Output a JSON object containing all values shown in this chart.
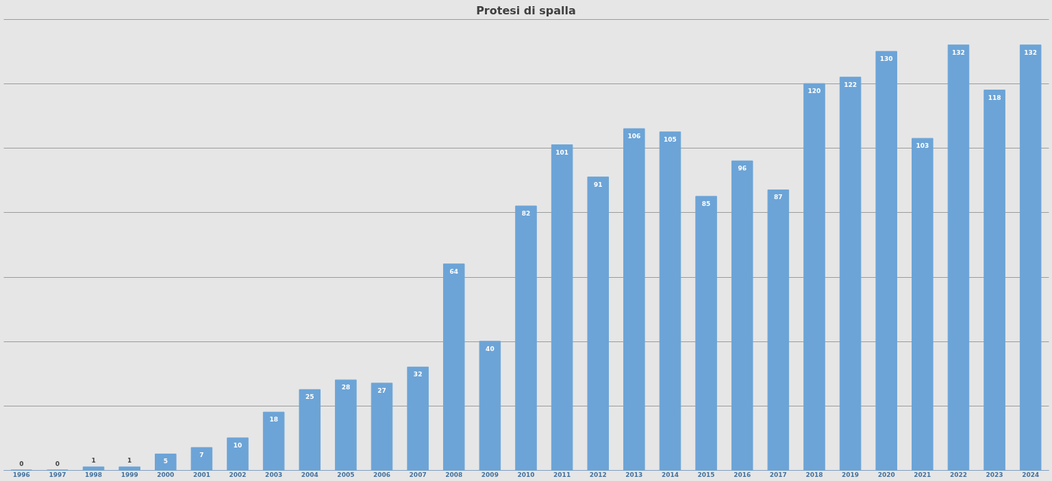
{
  "chart_data": {
    "type": "bar",
    "title": "Protesi di spalla",
    "categories": [
      "1996",
      "1997",
      "1998",
      "1999",
      "2000",
      "2001",
      "2002",
      "2003",
      "2004",
      "2005",
      "2006",
      "2007",
      "2008",
      "2009",
      "2010",
      "2011",
      "2012",
      "2013",
      "2014",
      "2015",
      "2016",
      "2017",
      "2018",
      "2019",
      "2020",
      "2021",
      "2022",
      "2023",
      "2024"
    ],
    "values": [
      0,
      0,
      1,
      1,
      5,
      7,
      10,
      18,
      25,
      28,
      27,
      32,
      64,
      40,
      82,
      101,
      91,
      106,
      105,
      85,
      96,
      87,
      120,
      122,
      130,
      103,
      132,
      118,
      132
    ],
    "color": "#6ca4d7",
    "ylim": [
      0,
      140
    ],
    "yticks": [
      {
        "value": 0,
        "label": null
      },
      {
        "value": 20,
        "label": null
      },
      {
        "value": 40,
        "label": null
      },
      {
        "value": 60,
        "label": null
      },
      {
        "value": 80,
        "label": null
      },
      {
        "value": 100,
        "label": null
      },
      {
        "value": 120,
        "label": null
      },
      {
        "value": 140,
        "label": null
      }
    ],
    "grid": "y",
    "tick_labels": "x",
    "data_labels": true
  }
}
